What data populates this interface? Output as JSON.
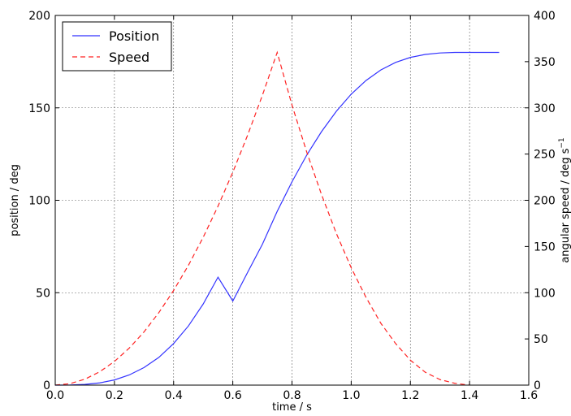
{
  "chart_data": {
    "type": "line",
    "title": "",
    "xlabel": "time / s",
    "ylabel_left": "position / deg",
    "ylabel_right": "angular speed / deg s",
    "ylabel_right_superscript": "−1",
    "xlim": [
      0.0,
      1.6
    ],
    "ylim_left": [
      0,
      200
    ],
    "ylim_right": [
      0,
      400
    ],
    "x_ticks": [
      0.0,
      0.2,
      0.4,
      0.6,
      0.8,
      1.0,
      1.2,
      1.4,
      1.6
    ],
    "x_tick_labels": [
      "0.0",
      "0.2",
      "0.4",
      "0.6",
      "0.8",
      "1.0",
      "1.2",
      "1.4",
      "1.6"
    ],
    "y_left_ticks": [
      0,
      50,
      100,
      150,
      200
    ],
    "y_left_tick_labels": [
      "0",
      "50",
      "100",
      "150",
      "200"
    ],
    "y_right_ticks": [
      0,
      50,
      100,
      150,
      200,
      250,
      300,
      350,
      400
    ],
    "y_right_tick_labels": [
      "0",
      "50",
      "100",
      "150",
      "200",
      "250",
      "300",
      "350",
      "400"
    ],
    "grid": true,
    "legend_position": "top-left",
    "series": [
      {
        "name": "Position",
        "axis": "left",
        "color": "#3333ff",
        "style": "solid",
        "x": [
          0.0,
          0.05,
          0.1,
          0.15,
          0.2,
          0.25,
          0.3,
          0.35,
          0.4,
          0.45,
          0.5,
          0.55,
          0.6,
          0.65,
          0.7,
          0.75,
          0.8,
          0.85,
          0.9,
          0.95,
          1.0,
          1.05,
          1.1,
          1.15,
          1.2,
          1.25,
          1.3,
          1.35,
          1.4,
          1.45,
          1.5
        ],
        "y": [
          0,
          0.05,
          0.4,
          1.2,
          2.8,
          5.5,
          9.5,
          15.0,
          22.5,
          32.0,
          43.9,
          58.4,
          45.5,
          61.0,
          76.2,
          94.0,
          110.0,
          124.5,
          137.2,
          148.2,
          157.4,
          164.8,
          170.5,
          174.6,
          177.3,
          178.9,
          179.7,
          180.0,
          180.0,
          180.0,
          180.0
        ]
      },
      {
        "name": "Speed",
        "axis": "right",
        "color": "#ff2222",
        "style": "dashed",
        "x": [
          0.0,
          0.05,
          0.1,
          0.15,
          0.2,
          0.25,
          0.3,
          0.35,
          0.4,
          0.45,
          0.5,
          0.55,
          0.6,
          0.65,
          0.7,
          0.75,
          0.8,
          0.85,
          0.9,
          0.95,
          1.0,
          1.05,
          1.1,
          1.15,
          1.2,
          1.25,
          1.3,
          1.35,
          1.4
        ],
        "y": [
          0,
          1.6,
          6.4,
          14.4,
          25.6,
          40.0,
          57.6,
          78.4,
          102.4,
          129.6,
          160.0,
          193.6,
          230.4,
          270.4,
          313.6,
          360.0,
          303.0,
          252.0,
          206.0,
          164.0,
          127.0,
          95.0,
          67.0,
          45.0,
          27.0,
          14.0,
          6.0,
          2.0,
          0.0
        ]
      }
    ]
  }
}
